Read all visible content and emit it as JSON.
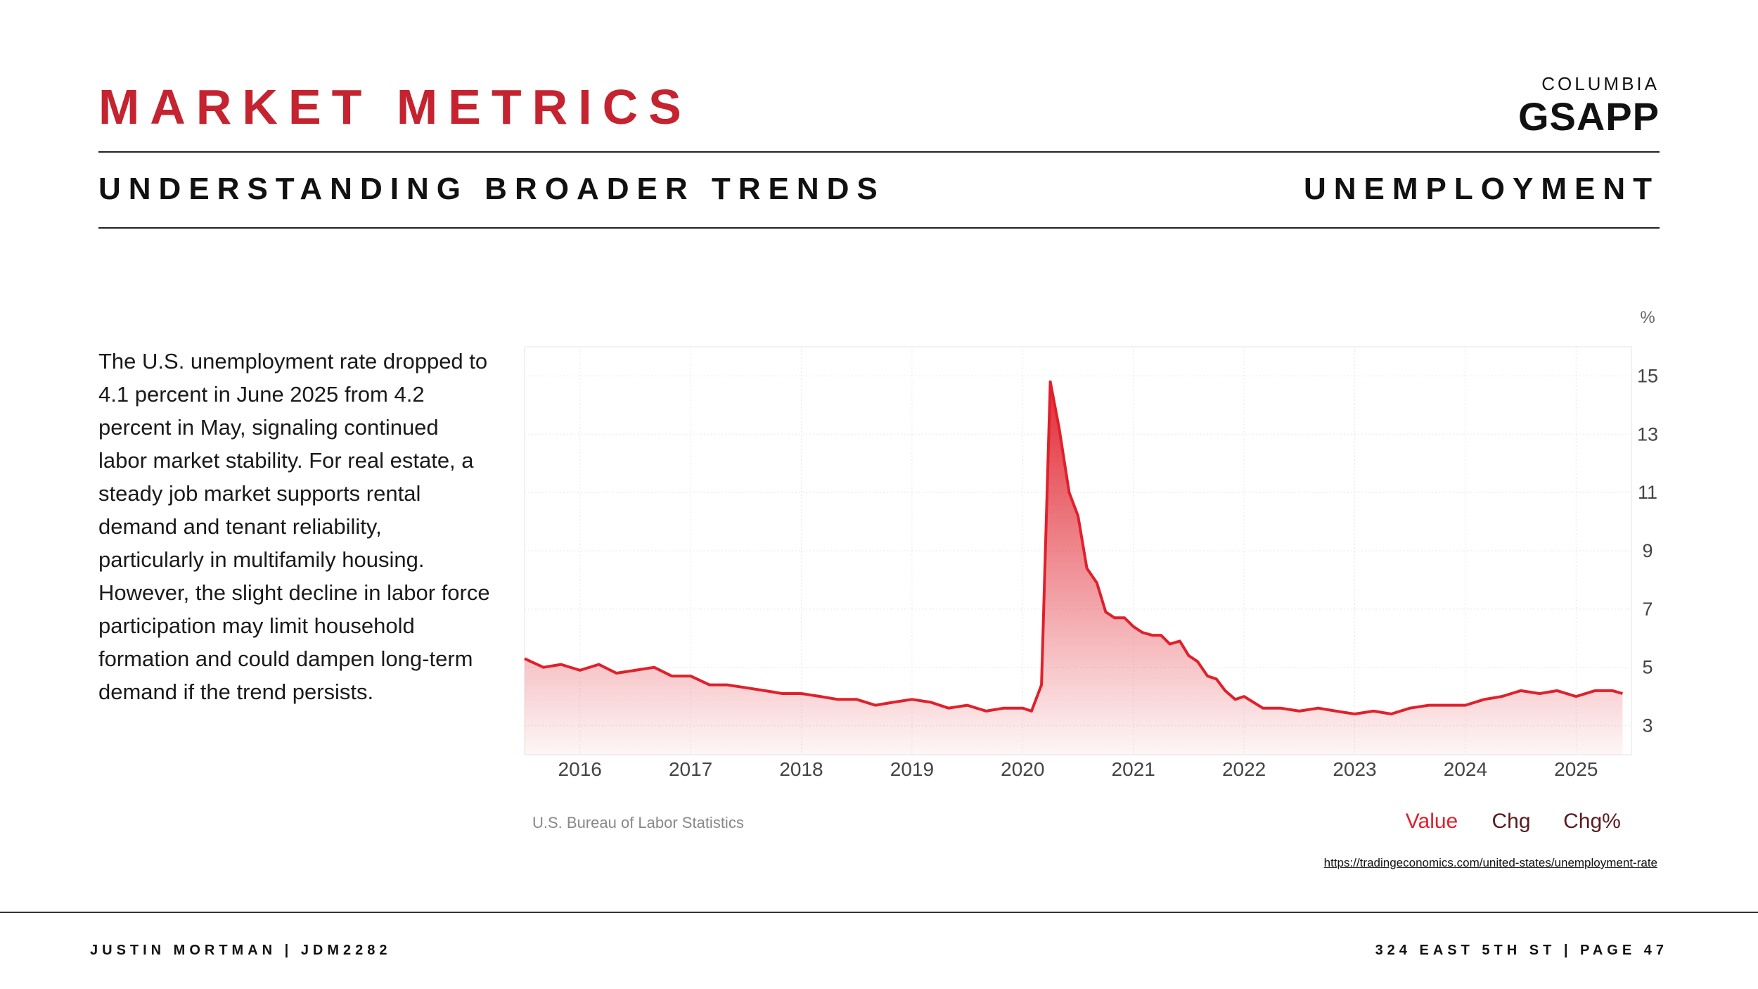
{
  "header": {
    "title": "MARKET METRICS",
    "subtitle": "UNDERSTANDING BROADER TRENDS",
    "section": "UNEMPLOYMENT",
    "logo_top": "COLUMBIA",
    "logo_main": "GSAPP"
  },
  "body_text": "The U.S. unemployment rate dropped to 4.1 percent in June 2025 from 4.2 percent in May, signaling continued labor market stability. For real estate, a steady job market supports rental demand and tenant reliability, particularly in multifamily housing. However, the slight decline in labor force participation may limit household formation and could dampen long-term demand if the trend persists.",
  "source_url": "https://tradingeconomics.com/united-states/unemployment-rate",
  "footer": {
    "left": "JUSTIN MORTMAN | JDM2282",
    "right": "324 EAST 5TH ST | PAGE 47"
  },
  "colors": {
    "accent": "#c4232f",
    "line": "#e0202b",
    "chg": "#5a1a1f"
  },
  "chart_data": {
    "type": "area",
    "title": "",
    "xlabel": "",
    "ylabel": "%",
    "source": "U.S. Bureau of Labor Statistics",
    "legend": [
      "Value",
      "Chg",
      "Chg%"
    ],
    "x_ticks": [
      "2016",
      "2017",
      "2018",
      "2019",
      "2020",
      "2021",
      "2022",
      "2023",
      "2024",
      "2025"
    ],
    "y_ticks": [
      3,
      5,
      7,
      9,
      11,
      13,
      15
    ],
    "xlim": [
      2015.5,
      2025.5
    ],
    "ylim": [
      2.0,
      16.0
    ],
    "x": [
      2015.5,
      2015.67,
      2015.83,
      2016.0,
      2016.17,
      2016.33,
      2016.5,
      2016.67,
      2016.83,
      2017.0,
      2017.17,
      2017.33,
      2017.5,
      2017.67,
      2017.83,
      2018.0,
      2018.17,
      2018.33,
      2018.5,
      2018.67,
      2018.83,
      2019.0,
      2019.17,
      2019.33,
      2019.5,
      2019.67,
      2019.83,
      2020.0,
      2020.08,
      2020.17,
      2020.25,
      2020.33,
      2020.42,
      2020.5,
      2020.58,
      2020.67,
      2020.75,
      2020.83,
      2020.92,
      2021.0,
      2021.08,
      2021.17,
      2021.25,
      2021.33,
      2021.42,
      2021.5,
      2021.58,
      2021.67,
      2021.75,
      2021.83,
      2021.92,
      2022.0,
      2022.17,
      2022.33,
      2022.5,
      2022.67,
      2022.83,
      2023.0,
      2023.17,
      2023.33,
      2023.5,
      2023.67,
      2023.83,
      2024.0,
      2024.17,
      2024.33,
      2024.5,
      2024.67,
      2024.83,
      2025.0,
      2025.17,
      2025.33,
      2025.42
    ],
    "values": [
      5.3,
      5.0,
      5.1,
      4.9,
      5.1,
      4.8,
      4.9,
      5.0,
      4.7,
      4.7,
      4.4,
      4.4,
      4.3,
      4.2,
      4.1,
      4.1,
      4.0,
      3.9,
      3.9,
      3.7,
      3.8,
      3.9,
      3.8,
      3.6,
      3.7,
      3.5,
      3.6,
      3.6,
      3.5,
      4.4,
      14.8,
      13.2,
      11.0,
      10.2,
      8.4,
      7.9,
      6.9,
      6.7,
      6.7,
      6.4,
      6.2,
      6.1,
      6.1,
      5.8,
      5.9,
      5.4,
      5.2,
      4.7,
      4.6,
      4.2,
      3.9,
      4.0,
      3.6,
      3.6,
      3.5,
      3.6,
      3.5,
      3.4,
      3.5,
      3.4,
      3.6,
      3.7,
      3.7,
      3.7,
      3.9,
      4.0,
      4.2,
      4.1,
      4.2,
      4.0,
      4.2,
      4.2,
      4.1
    ]
  }
}
